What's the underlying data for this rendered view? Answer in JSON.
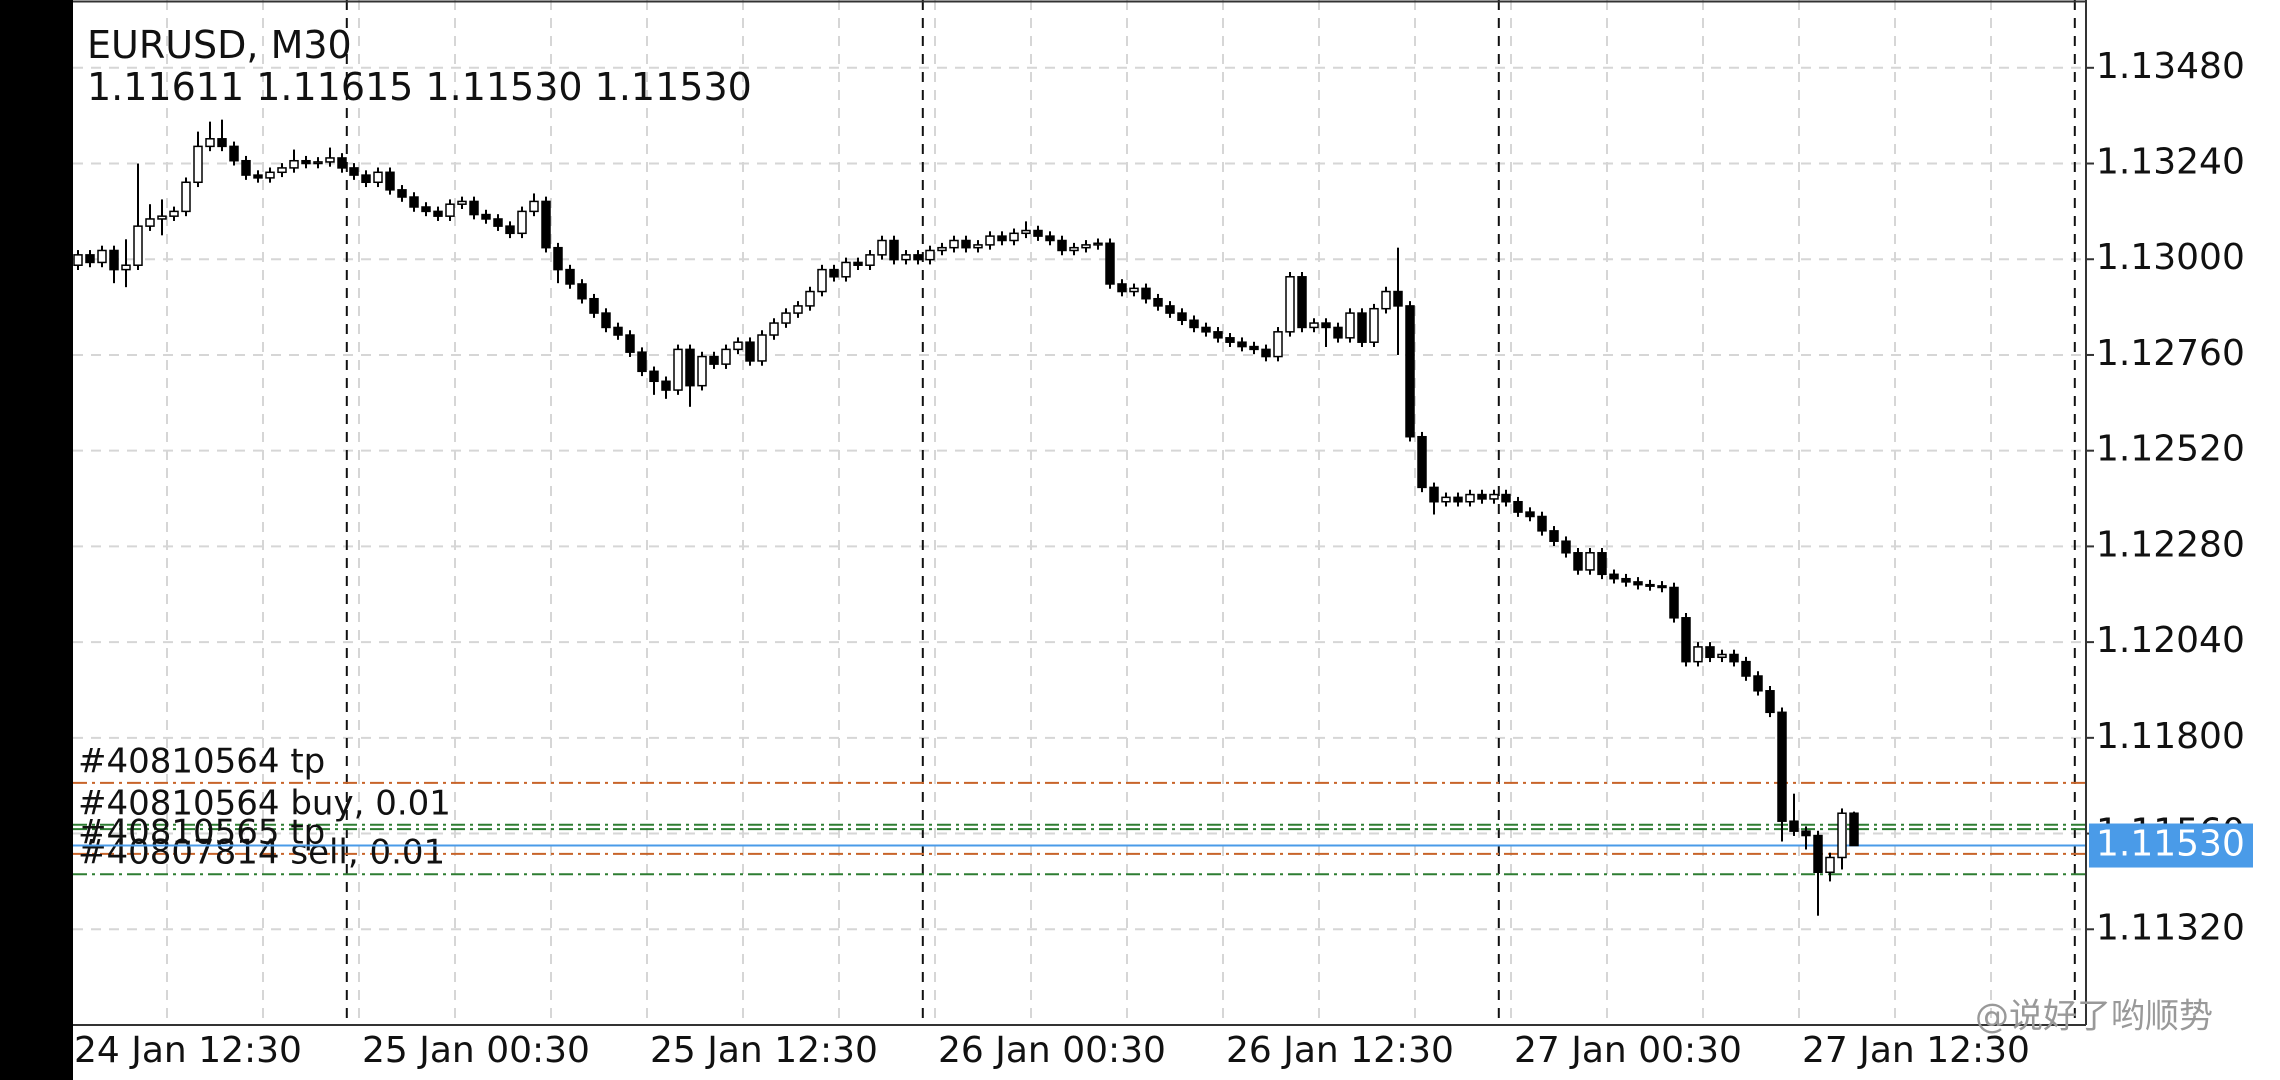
{
  "chart_data": {
    "type": "candlestick",
    "title": "EURUSD, M30",
    "ohlc": "1.11611 1.11615 1.11530 1.11530",
    "watermark": "@说好了哟顺势",
    "up_color": "#ffffff",
    "down_color": "#000000",
    "grid": true,
    "ylim": [
      1.1108,
      1.1365
    ],
    "yticks": [
      {
        "value": 1.1348,
        "label": "1.13480"
      },
      {
        "value": 1.1324,
        "label": "1.13240"
      },
      {
        "value": 1.13,
        "label": "1.13000"
      },
      {
        "value": 1.1276,
        "label": "1.12760"
      },
      {
        "value": 1.1252,
        "label": "1.12520"
      },
      {
        "value": 1.1228,
        "label": "1.12280"
      },
      {
        "value": 1.1204,
        "label": "1.12040"
      },
      {
        "value": 1.118,
        "label": "1.11800"
      },
      {
        "value": 1.1156,
        "label": "1.11560"
      },
      {
        "value": 1.1132,
        "label": "1.11320"
      }
    ],
    "current": {
      "value": 1.1153,
      "label": "1.11530",
      "color": "#4a9be8"
    },
    "levels": [
      {
        "label": "#40810564 tp",
        "value": 1.11687,
        "color": "#c8642a"
      },
      {
        "label": "#40810564 buy, 0.01",
        "value": 1.11582,
        "color": "#2e7d32"
      },
      {
        "value": 1.11571,
        "color": "#2e7d32"
      },
      {
        "label": "#40810565 tp",
        "value": 1.11509,
        "color": "#c8642a"
      },
      {
        "label": "#40807814 sell, 0.01",
        "value": 1.11458,
        "color": "#2e7d32"
      }
    ],
    "categories": [
      "24 Jan 12:30",
      null,
      null,
      null,
      null,
      null,
      null,
      null,
      null,
      null,
      null,
      null,
      null,
      null,
      null,
      null,
      null,
      null,
      null,
      null,
      null,
      null,
      null,
      null,
      "25 Jan 00:30",
      null,
      null,
      null,
      null,
      null,
      null,
      null,
      null,
      null,
      null,
      null,
      null,
      null,
      null,
      null,
      null,
      null,
      null,
      null,
      null,
      null,
      null,
      null,
      "25 Jan 12:30",
      null,
      null,
      null,
      null,
      null,
      null,
      null,
      null,
      null,
      null,
      null,
      null,
      null,
      null,
      null,
      null,
      null,
      null,
      null,
      null,
      null,
      null,
      null,
      "26 Jan 00:30",
      null,
      null,
      null,
      null,
      null,
      null,
      null,
      null,
      null,
      null,
      null,
      null,
      null,
      null,
      null,
      null,
      null,
      null,
      null,
      null,
      null,
      null,
      null,
      "26 Jan 12:30",
      null,
      null,
      null,
      null,
      null,
      null,
      null,
      null,
      null,
      null,
      null,
      null,
      null,
      null,
      null,
      null,
      null,
      null,
      null,
      null,
      null,
      null,
      null,
      "27 Jan 00:30",
      null,
      null,
      null,
      null,
      null,
      null,
      null,
      null,
      null,
      null,
      null,
      null,
      null,
      null,
      null,
      null,
      null,
      null,
      null,
      null,
      null,
      null,
      null,
      "27 Jan 12:30",
      null,
      null,
      null,
      null
    ],
    "open": [
      1.12985,
      1.13011,
      1.12992,
      1.13022,
      1.12974,
      1.12985,
      1.13083,
      1.13101,
      1.13108,
      1.1312,
      1.13193,
      1.13283,
      1.13302,
      1.13283,
      1.13247,
      1.13211,
      1.13204,
      1.13218,
      1.13229,
      1.13247,
      1.1324,
      1.13244,
      1.13254,
      1.13229,
      1.13211,
      1.13193,
      1.13218,
      1.13174,
      1.13156,
      1.13131,
      1.1312,
      1.13108,
      1.13138,
      1.13145,
      1.13112,
      1.13101,
      1.13083,
      1.13065,
      1.1312,
      1.13145,
      1.13029,
      1.12974,
      1.12938,
      1.12901,
      1.12865,
      1.12829,
      1.1281,
      1.12767,
      1.12719,
      1.12694,
      1.12672,
      1.12774,
      1.12683,
      1.12756,
      1.12737,
      1.12774,
      1.12792,
      1.12745,
      1.1281,
      1.1284,
      1.12865,
      1.12883,
      1.12919,
      1.12974,
      1.12956,
      1.12992,
      1.12985,
      1.13011,
      1.13047,
      1.12999,
      1.13011,
      1.12999,
      1.13022,
      1.13029,
      1.13047,
      1.13029,
      1.13036,
      1.13058,
      1.13047,
      1.13065,
      1.13072,
      1.13058,
      1.13047,
      1.13022,
      1.13029,
      1.13036,
      1.1304,
      1.12938,
      1.12919,
      1.12927,
      1.12901,
      1.12883,
      1.12865,
      1.12847,
      1.12829,
      1.12818,
      1.12803,
      1.12792,
      1.12781,
      1.12774,
      1.12756,
      1.12818,
      1.12956,
      1.12829,
      1.1284,
      1.12829,
      1.12803,
      1.12865,
      1.12792,
      1.12876,
      1.12919,
      1.12883,
      1.12555,
      1.12428,
      1.12392,
      1.12403,
      1.12392,
      1.1241,
      1.12399,
      1.1241,
      1.12392,
      1.12366,
      1.12355,
      1.12319,
      1.12293,
      1.12264,
      1.12221,
      1.12264,
      1.1221,
      1.12199,
      1.12191,
      1.12184,
      1.12181,
      1.12177,
      1.12101,
      1.11991,
      1.12028,
      1.12002,
      1.12009,
      1.11991,
      1.11955,
      1.11918,
      1.11864,
      1.11591,
      1.11566,
      1.11555,
      1.11463,
      1.115,
      1.11611
    ],
    "high": [
      1.13023,
      1.13023,
      1.13034,
      1.13034,
      1.1305,
      1.1324,
      1.13138,
      1.1315,
      1.13132,
      1.13205,
      1.1332,
      1.13345,
      1.1335,
      1.13295,
      1.13259,
      1.13223,
      1.1323,
      1.13241,
      1.13275,
      1.13259,
      1.13256,
      1.1328,
      1.13266,
      1.13241,
      1.13223,
      1.1323,
      1.1323,
      1.13186,
      1.13168,
      1.13143,
      1.13132,
      1.1315,
      1.13157,
      1.13157,
      1.13124,
      1.13113,
      1.13095,
      1.13132,
      1.13165,
      1.13157,
      1.13041,
      1.12986,
      1.1295,
      1.12913,
      1.12877,
      1.12841,
      1.12822,
      1.12779,
      1.12731,
      1.12706,
      1.12786,
      1.12786,
      1.12768,
      1.12768,
      1.12786,
      1.12804,
      1.12804,
      1.12822,
      1.12852,
      1.12877,
      1.12895,
      1.12931,
      1.12986,
      1.12986,
      1.13004,
      1.13004,
      1.13023,
      1.13059,
      1.13059,
      1.13023,
      1.13023,
      1.13034,
      1.13041,
      1.13059,
      1.13059,
      1.13048,
      1.1307,
      1.1307,
      1.13077,
      1.13095,
      1.13084,
      1.1307,
      1.13059,
      1.13041,
      1.13048,
      1.13052,
      1.13052,
      1.1295,
      1.12939,
      1.12939,
      1.12913,
      1.12895,
      1.12877,
      1.12859,
      1.12841,
      1.1283,
      1.12815,
      1.12804,
      1.12793,
      1.12786,
      1.1283,
      1.12968,
      1.12968,
      1.12852,
      1.12852,
      1.12841,
      1.12877,
      1.12877,
      1.12888,
      1.12931,
      1.13029,
      1.12895,
      1.12567,
      1.1244,
      1.12415,
      1.12415,
      1.12422,
      1.12422,
      1.12422,
      1.12422,
      1.12404,
      1.12378,
      1.12367,
      1.12331,
      1.12305,
      1.12276,
      1.12276,
      1.12276,
      1.12222,
      1.12211,
      1.12203,
      1.12196,
      1.12193,
      1.12189,
      1.12113,
      1.1204,
      1.1204,
      1.12021,
      1.12021,
      1.12003,
      1.11967,
      1.1193,
      1.11876,
      1.1166,
      1.11578,
      1.11567,
      1.11512,
      1.11623,
      1.11615
    ],
    "low": [
      1.12973,
      1.1298,
      1.1298,
      1.1294,
      1.1293,
      1.12973,
      1.13071,
      1.1306,
      1.13096,
      1.13108,
      1.13181,
      1.13271,
      1.13271,
      1.13235,
      1.13199,
      1.13192,
      1.13192,
      1.13206,
      1.13217,
      1.13228,
      1.13228,
      1.13232,
      1.13217,
      1.13199,
      1.13181,
      1.13181,
      1.13162,
      1.13144,
      1.13119,
      1.13108,
      1.13096,
      1.13096,
      1.13126,
      1.131,
      1.13089,
      1.13071,
      1.13053,
      1.13053,
      1.13108,
      1.13017,
      1.1294,
      1.12926,
      1.12889,
      1.12853,
      1.12817,
      1.12798,
      1.12755,
      1.12707,
      1.1266,
      1.1265,
      1.1266,
      1.1263,
      1.12671,
      1.12725,
      1.12725,
      1.12762,
      1.12733,
      1.12733,
      1.12798,
      1.12828,
      1.12853,
      1.12871,
      1.12907,
      1.12944,
      1.12944,
      1.12973,
      1.12973,
      1.12999,
      1.12987,
      1.12987,
      1.12987,
      1.12987,
      1.1301,
      1.13017,
      1.13017,
      1.13017,
      1.13024,
      1.13035,
      1.13035,
      1.13053,
      1.13046,
      1.13035,
      1.1301,
      1.1301,
      1.13017,
      1.13024,
      1.12926,
      1.12907,
      1.12907,
      1.12889,
      1.12871,
      1.12853,
      1.12835,
      1.12817,
      1.12806,
      1.12791,
      1.1278,
      1.12769,
      1.12762,
      1.12744,
      1.12744,
      1.12806,
      1.12817,
      1.12817,
      1.1278,
      1.12791,
      1.12791,
      1.1278,
      1.1278,
      1.12864,
      1.1276,
      1.12543,
      1.12416,
      1.1236,
      1.1238,
      1.1238,
      1.1238,
      1.12387,
      1.12387,
      1.1238,
      1.12354,
      1.12343,
      1.12307,
      1.12281,
      1.12252,
      1.12209,
      1.12209,
      1.12198,
      1.12187,
      1.12179,
      1.12172,
      1.12169,
      1.12165,
      1.12089,
      1.11979,
      1.11979,
      1.1199,
      1.1199,
      1.11979,
      1.11943,
      1.11906,
      1.11852,
      1.1154,
      1.11554,
      1.1152,
      1.11354,
      1.1144,
      1.1147,
      1.1153
    ],
    "close": [
      1.13011,
      1.12992,
      1.13022,
      1.12974,
      1.12985,
      1.13083,
      1.13101,
      1.13108,
      1.1312,
      1.13193,
      1.13283,
      1.13302,
      1.13283,
      1.13247,
      1.13211,
      1.13204,
      1.13218,
      1.13229,
      1.13247,
      1.1324,
      1.13244,
      1.13254,
      1.13229,
      1.13211,
      1.13193,
      1.13218,
      1.13174,
      1.13156,
      1.13131,
      1.1312,
      1.13108,
      1.13138,
      1.13145,
      1.13112,
      1.13101,
      1.13083,
      1.13065,
      1.1312,
      1.13145,
      1.13029,
      1.12974,
      1.12938,
      1.12901,
      1.12865,
      1.12829,
      1.1281,
      1.12767,
      1.12719,
      1.12694,
      1.12672,
      1.12774,
      1.12683,
      1.12756,
      1.12737,
      1.12774,
      1.12792,
      1.12745,
      1.1281,
      1.1284,
      1.12865,
      1.12883,
      1.12919,
      1.12974,
      1.12956,
      1.12992,
      1.12985,
      1.13011,
      1.13047,
      1.12999,
      1.13011,
      1.12999,
      1.13022,
      1.13029,
      1.13047,
      1.13029,
      1.13036,
      1.13058,
      1.13047,
      1.13065,
      1.13072,
      1.13058,
      1.13047,
      1.13022,
      1.13029,
      1.13036,
      1.1304,
      1.12938,
      1.12919,
      1.12927,
      1.12901,
      1.12883,
      1.12865,
      1.12847,
      1.12829,
      1.12818,
      1.12803,
      1.12792,
      1.12781,
      1.12774,
      1.12756,
      1.12818,
      1.12956,
      1.12829,
      1.1284,
      1.12829,
      1.12803,
      1.12865,
      1.12792,
      1.12876,
      1.12919,
      1.12883,
      1.12555,
      1.12428,
      1.12392,
      1.12403,
      1.12392,
      1.1241,
      1.12399,
      1.1241,
      1.12392,
      1.12366,
      1.12355,
      1.12319,
      1.12293,
      1.12264,
      1.12221,
      1.12264,
      1.1221,
      1.12199,
      1.12191,
      1.12184,
      1.12181,
      1.12177,
      1.12101,
      1.11991,
      1.12028,
      1.12002,
      1.12009,
      1.11991,
      1.11955,
      1.11918,
      1.11864,
      1.11591,
      1.11566,
      1.11555,
      1.11463,
      1.115,
      1.11611,
      1.1153
    ]
  }
}
